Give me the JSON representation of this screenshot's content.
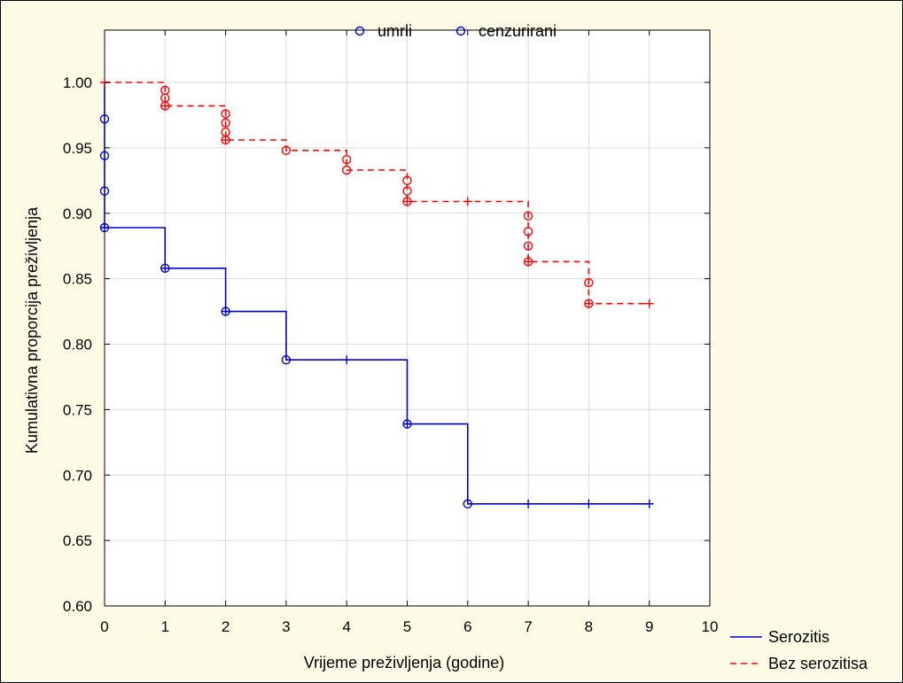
{
  "chart_data": {
    "type": "line",
    "title": "",
    "xlabel": "Vrijeme preživljenja (godine)",
    "ylabel": "Kumulativna proporcija preživljenja",
    "xlim": [
      0,
      10
    ],
    "ylim": [
      0.6,
      1.0
    ],
    "x_ticks": [
      "0",
      "1",
      "2",
      "3",
      "4",
      "5",
      "6",
      "7",
      "8",
      "9",
      "10"
    ],
    "y_ticks": [
      "0.60",
      "0.65",
      "0.70",
      "0.75",
      "0.80",
      "0.85",
      "0.90",
      "0.95",
      "1.00"
    ],
    "grid": true,
    "marker_legend": {
      "placement": "top-center",
      "items": [
        {
          "label": "umrli",
          "marker": "circle"
        },
        {
          "label": "cenzurirani",
          "marker": "circle"
        }
      ]
    },
    "line_legend": {
      "placement": "bottom-right",
      "items": [
        {
          "label": "Serozitis",
          "style": "solid",
          "color": "#0000cc"
        },
        {
          "label": "Bez serozitisa",
          "style": "dashed",
          "color": "#ff0000"
        }
      ]
    },
    "series": [
      {
        "name": "Serozitis",
        "color": "#0000cc",
        "style": "solid",
        "steps": [
          [
            0,
            1.0
          ],
          [
            0,
            0.889
          ],
          [
            1,
            0.889
          ],
          [
            1,
            0.858
          ],
          [
            2,
            0.858
          ],
          [
            2,
            0.825
          ],
          [
            3,
            0.825
          ],
          [
            3,
            0.788
          ],
          [
            5,
            0.788
          ],
          [
            5,
            0.739
          ],
          [
            6,
            0.739
          ],
          [
            6,
            0.678
          ],
          [
            9,
            0.678
          ]
        ],
        "deaths": [
          [
            0,
            0.972
          ],
          [
            0,
            0.944
          ],
          [
            0,
            0.917
          ],
          [
            0,
            0.889
          ],
          [
            1,
            0.858
          ],
          [
            2,
            0.825
          ],
          [
            3,
            0.788
          ],
          [
            5,
            0.739
          ],
          [
            6,
            0.678
          ]
        ],
        "censored": [
          [
            0,
            0.889
          ],
          [
            1,
            0.858
          ],
          [
            2,
            0.825
          ],
          [
            4,
            0.788
          ],
          [
            5,
            0.739
          ],
          [
            7,
            0.678
          ],
          [
            8,
            0.678
          ],
          [
            9,
            0.678
          ]
        ]
      },
      {
        "name": "Bez serozitisa",
        "color": "#ff0000",
        "style": "dashed",
        "steps": [
          [
            0,
            1.0
          ],
          [
            1,
            1.0
          ],
          [
            1,
            0.982
          ],
          [
            2,
            0.982
          ],
          [
            2,
            0.956
          ],
          [
            3,
            0.956
          ],
          [
            3,
            0.948
          ],
          [
            4,
            0.948
          ],
          [
            4,
            0.933
          ],
          [
            5,
            0.933
          ],
          [
            5,
            0.909
          ],
          [
            7,
            0.909
          ],
          [
            7,
            0.863
          ],
          [
            8,
            0.863
          ],
          [
            8,
            0.831
          ],
          [
            9,
            0.831
          ]
        ],
        "deaths": [
          [
            1,
            0.994
          ],
          [
            1,
            0.988
          ],
          [
            1,
            0.982
          ],
          [
            2,
            0.976
          ],
          [
            2,
            0.969
          ],
          [
            2,
            0.962
          ],
          [
            2,
            0.956
          ],
          [
            3,
            0.948
          ],
          [
            4,
            0.941
          ],
          [
            4,
            0.933
          ],
          [
            5,
            0.925
          ],
          [
            5,
            0.917
          ],
          [
            5,
            0.909
          ],
          [
            7,
            0.898
          ],
          [
            7,
            0.886
          ],
          [
            7,
            0.875
          ],
          [
            7,
            0.863
          ],
          [
            8,
            0.847
          ],
          [
            8,
            0.831
          ]
        ],
        "censored": [
          [
            0,
            1.0
          ],
          [
            1,
            0.982
          ],
          [
            2,
            0.956
          ],
          [
            5,
            0.909
          ],
          [
            6,
            0.909
          ],
          [
            7,
            0.863
          ],
          [
            8,
            0.831
          ],
          [
            9,
            0.831
          ]
        ]
      }
    ]
  }
}
